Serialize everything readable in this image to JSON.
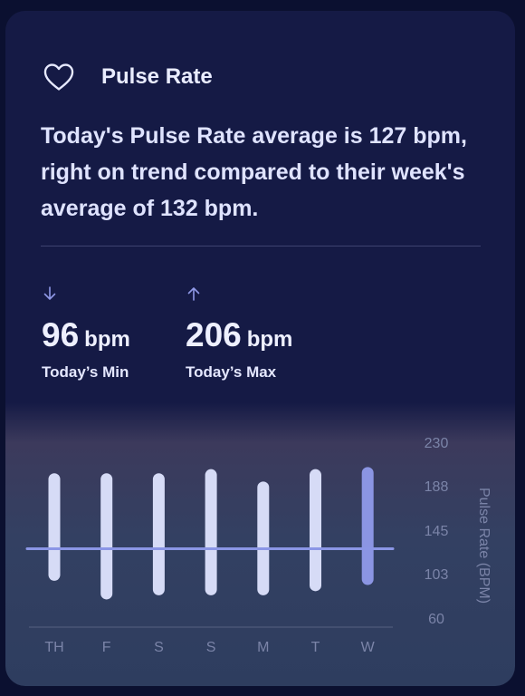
{
  "header": {
    "title": "Pulse Rate",
    "icon": "heart-icon"
  },
  "summary": "Today's Pulse Rate average is 127 bpm, right on trend compared to their week's average of 132 bpm.",
  "stats": {
    "min": {
      "value": "96",
      "unit": "bpm",
      "label": "Today’s Min",
      "icon": "arrow-down-icon"
    },
    "max": {
      "value": "206",
      "unit": "bpm",
      "label": "Today’s Max",
      "icon": "arrow-up-icon"
    }
  },
  "colors": {
    "bar": "#d6dbf6",
    "bar_highlight": "#8b95e3",
    "average_line": "#8b96e6"
  },
  "chart_data": {
    "type": "bar",
    "categories": [
      "TH",
      "F",
      "S",
      "S",
      "M",
      "T",
      "W"
    ],
    "ranges": [
      [
        96,
        200
      ],
      [
        78,
        200
      ],
      [
        82,
        200
      ],
      [
        82,
        204
      ],
      [
        82,
        192
      ],
      [
        86,
        204
      ],
      [
        92,
        206
      ]
    ],
    "highlight_index": 6,
    "average": 127,
    "ylim": [
      60,
      230
    ],
    "yticks": [
      230,
      188,
      145,
      103,
      60
    ],
    "ylabel": "Pulse Rate (BPM)"
  }
}
